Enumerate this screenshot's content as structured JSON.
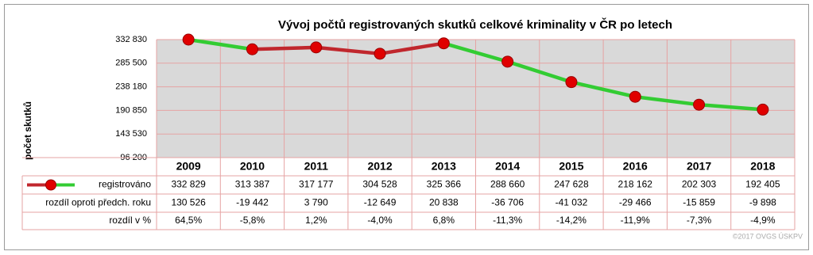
{
  "chart_data": {
    "type": "line",
    "title": "Vývoj počtů registrovaných skutků celkové kriminality v ČR po letech",
    "y_label": "počet skutků",
    "categories": [
      "2009",
      "2010",
      "2011",
      "2012",
      "2013",
      "2014",
      "2015",
      "2016",
      "2017",
      "2018"
    ],
    "series": [
      {
        "name": "registrováno",
        "color": "#e00000",
        "values": [
          332829,
          313387,
          317177,
          304528,
          325366,
          288660,
          247628,
          218162,
          202303,
          192405
        ],
        "value_labels": [
          "332 829",
          "313 387",
          "317 177",
          "304 528",
          "325 366",
          "288 660",
          "247 628",
          "218 162",
          "202 303",
          "192 405"
        ]
      }
    ],
    "line_colors": [
      "#33cc33",
      "#c0272d",
      "#c0272d",
      "#c0272d",
      "#33cc33",
      "#33cc33",
      "#33cc33",
      "#33cc33",
      "#33cc33"
    ],
    "table_rows": [
      {
        "name": "rozdíl oproti předch. roku",
        "values": [
          130526,
          -19442,
          3790,
          -12649,
          20838,
          -36706,
          -41032,
          -29466,
          -15859,
          -9898
        ],
        "value_labels": [
          "130 526",
          "-19 442",
          "3 790",
          "-12 649",
          "20 838",
          "-36 706",
          "-41 032",
          "-29 466",
          "-15 859",
          "-9 898"
        ]
      },
      {
        "name": "rozdíl v %",
        "values": [
          64.5,
          -5.8,
          1.2,
          -4.0,
          6.8,
          -11.3,
          -14.2,
          -11.9,
          -7.3,
          -4.9
        ],
        "value_labels": [
          "64,5%",
          "-5,8%",
          "1,2%",
          "-4,0%",
          "6,8%",
          "-11,3%",
          "-14,2%",
          "-11,9%",
          "-7,3%",
          "-4,9%"
        ]
      }
    ],
    "ylim": [
      96200,
      332830
    ],
    "yticks": [
      {
        "value": 96200,
        "label": "96 200"
      },
      {
        "value": 143530,
        "label": "143 530"
      },
      {
        "value": 190850,
        "label": "190 850"
      },
      {
        "value": 238180,
        "label": "238 180"
      },
      {
        "value": 285500,
        "label": "285 500"
      },
      {
        "value": 332830,
        "label": "332 830"
      }
    ],
    "grid": true,
    "copyright": "©2017 OVGS ÚSKPV"
  }
}
